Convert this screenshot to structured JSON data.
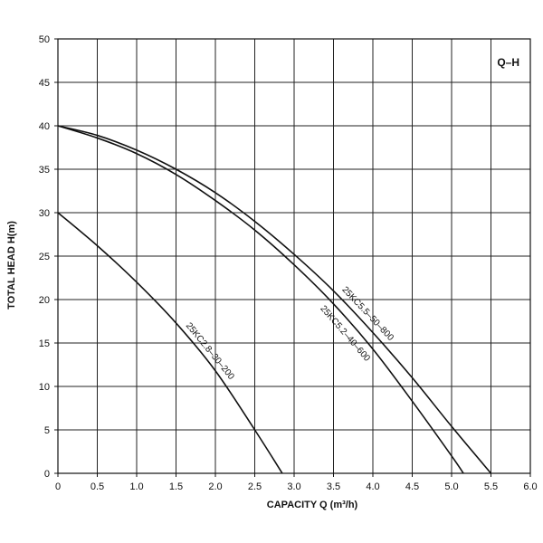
{
  "chart_data": {
    "type": "line",
    "title": "Q–H",
    "xlabel": "CAPACITY  Q (m³/h)",
    "ylabel": "TOTAL HEAD  H(m)",
    "xlim": [
      0,
      6.0
    ],
    "ylim": [
      0,
      50
    ],
    "x_ticks": [
      0,
      0.5,
      1.0,
      1.5,
      2.0,
      2.5,
      3.0,
      3.5,
      4.0,
      4.5,
      5.0,
      5.5,
      6.0
    ],
    "x_tick_labels": [
      "0",
      "0.5",
      "1.0",
      "1.5",
      "2.0",
      "2.5",
      "3.0",
      "3.5",
      "4.0",
      "4.5",
      "5.0",
      "5.5",
      "6.0"
    ],
    "y_ticks": [
      0,
      5,
      10,
      15,
      20,
      25,
      30,
      35,
      40,
      45,
      50
    ],
    "y_tick_labels": [
      "0",
      "5",
      "10",
      "15",
      "20",
      "25",
      "30",
      "35",
      "40",
      "45",
      "50"
    ],
    "grid": true,
    "legend": "top-right",
    "series": [
      {
        "name": "25KC2.8-30-200",
        "label_text": "25KC2.8–30–200",
        "x": [
          0,
          0.5,
          1.0,
          1.5,
          2.0,
          2.5,
          2.85
        ],
        "y": [
          30,
          26.2,
          22,
          17.3,
          11.8,
          5,
          0
        ]
      },
      {
        "name": "25KC5.2-40-600",
        "label_text": "25KC5.2–40–600",
        "x": [
          0,
          0.5,
          1.0,
          1.5,
          2.0,
          2.5,
          3.0,
          3.5,
          4.0,
          4.5,
          5.0,
          5.15
        ],
        "y": [
          40,
          38.6,
          36.8,
          34.4,
          31.4,
          28,
          24,
          19.5,
          14.3,
          8.3,
          2,
          0
        ]
      },
      {
        "name": "25KC5.5-50-800",
        "label_text": "25KC5.5–50–800",
        "x": [
          0,
          0.5,
          1.0,
          1.5,
          2.0,
          2.5,
          3.0,
          3.5,
          4.0,
          4.5,
          5.0,
          5.5
        ],
        "y": [
          40,
          38.9,
          37.2,
          35,
          32.3,
          29,
          25.2,
          21,
          16.2,
          11,
          5.4,
          0
        ]
      }
    ]
  }
}
